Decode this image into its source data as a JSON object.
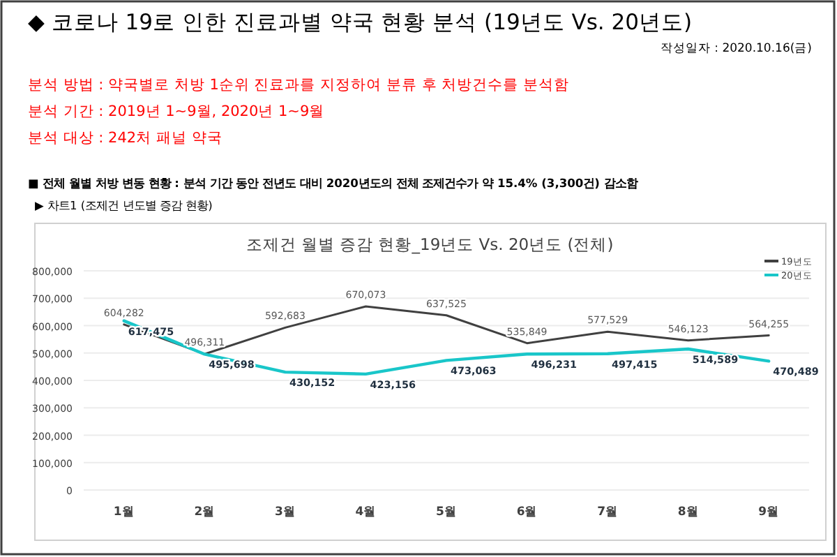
{
  "chart_data": {
    "type": "line",
    "title": "◆ 코로나 19로 인한 진료과별 약국 현황 분석 (19년도 Vs. 20년도)",
    "subtitle": "조제건 월별 증감 현황_19년도 Vs. 20년도 (전체)",
    "annotations": [
      "작성일자 : 2020.10.16(금)",
      "분석 방법 : 약국별로 처방 1순위 진료과를 지정하여 분류 후 처방건수를 분석함",
      "분석 기간 : 2019년 1~9월, 2020년 1~9월",
      "분석 대상 : 242처 패널 약국",
      "■  전체 월별 처방 변동 현황 : 분석 기간 동안 전년도 대비 2020년도의 전체 조제건수가 약 15.4% (3,300건) 감소함",
      "▶ 차트1 (조제건 년도별 증감 현황)"
    ],
    "categories": [
      "1월",
      "2월",
      "3월",
      "4월",
      "5월",
      "6월",
      "7월",
      "8월",
      "9월"
    ],
    "series": [
      {
        "name": "19년도",
        "color": "#404040",
        "values": [
          604282,
          496311,
          592683,
          670073,
          637525,
          535849,
          577529,
          546123,
          564255
        ],
        "value_labels": [
          "604,282",
          "496,311",
          "592,683",
          "670,073",
          "637,525",
          "535,849",
          "577,529",
          "546,123",
          "564,255"
        ]
      },
      {
        "name": "20년도",
        "color": "#19c6c9",
        "values": [
          617475,
          495698,
          430152,
          423156,
          473063,
          496231,
          497415,
          514589,
          470489
        ],
        "value_labels": [
          "617,475",
          "495,698",
          "430,152",
          "423,156",
          "473,063",
          "496,231",
          "497,415",
          "514,589",
          "470,489"
        ]
      }
    ],
    "ylim": [
      0,
      800000
    ],
    "yticks": [
      0,
      {
        "value": 100000,
        "label": "100,000"
      },
      {
        "value": 200000,
        "label": "200,000"
      },
      {
        "value": 300000,
        "label": "300,000"
      },
      {
        "value": 400000,
        "label": "400,000"
      },
      {
        "value": 500000,
        "label": "500,000"
      },
      {
        "value": 600000,
        "label": "600,000"
      },
      {
        "value": 700000,
        "label": "700,000"
      },
      {
        "value": 800000,
        "label": "800,000"
      }
    ],
    "grid": "y",
    "legend": "top right",
    "marker": "none",
    "line_style": "solid"
  }
}
